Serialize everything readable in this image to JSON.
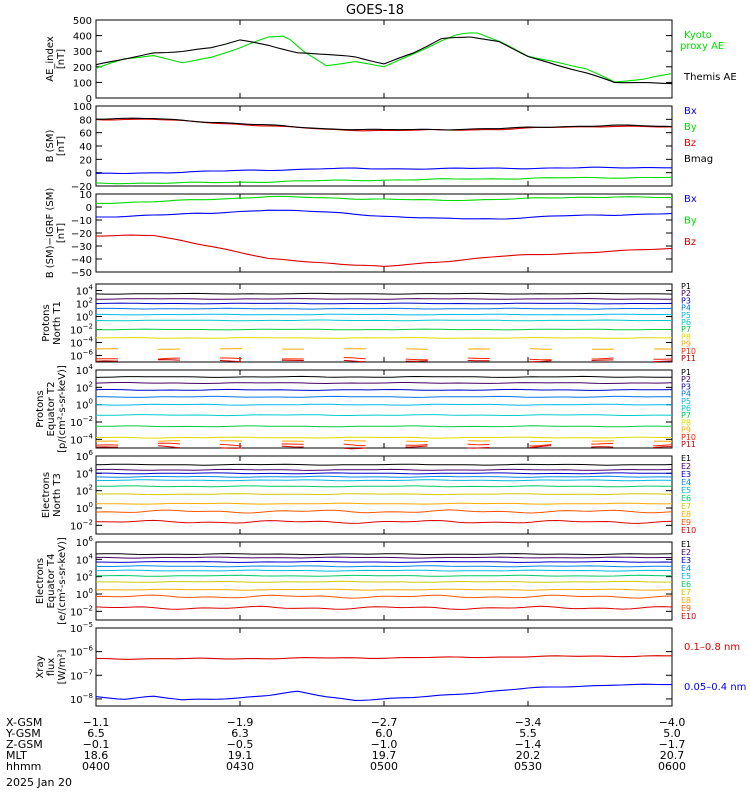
{
  "title": "GOES-18",
  "date": "2025 Jan 20",
  "ephemeris": {
    "rows": [
      {
        "label": "X-GSM",
        "values": [
          "-1.1",
          "-1.9",
          "-2.7",
          "-3.4",
          "-4.0"
        ]
      },
      {
        "label": "Y-GSM",
        "values": [
          "6.5",
          "6.3",
          "6.0",
          "5.5",
          "5.0"
        ]
      },
      {
        "label": "Z-GSM",
        "values": [
          "-0.1",
          "-0.5",
          "-1.0",
          "-1.4",
          "-1.7"
        ]
      },
      {
        "label": "MLT",
        "values": [
          "18.6",
          "19.1",
          "19.7",
          "20.2",
          "20.7"
        ]
      },
      {
        "label": "hhmm",
        "values": [
          "0400",
          "0430",
          "0500",
          "0530",
          "0600"
        ]
      }
    ]
  },
  "colors": {
    "black": "#000000",
    "green": "#00dd00",
    "blue": "#0000ff",
    "red": "#dd0000",
    "darkred": "#880000",
    "p_channels": [
      "#000000",
      "#440066",
      "#0000cc",
      "#0077ee",
      "#00bbee",
      "#00cccc",
      "#00cc44",
      "#dddd00",
      "#ffaa00",
      "#ff2200",
      "#cc0000"
    ],
    "e_channels": [
      "#000000",
      "#440066",
      "#0000cc",
      "#0088ee",
      "#00bbdd",
      "#00cc66",
      "#cccc00",
      "#ffaa00",
      "#ff5500",
      "#dd0000"
    ]
  },
  "chart_data": [
    {
      "type": "line",
      "ylabel": "AE_index [nT]",
      "ylim": [
        0,
        500
      ],
      "yticks": [
        "0",
        "100",
        "200",
        "300",
        "400",
        "500"
      ],
      "x": [
        "0400",
        "0430",
        "0500",
        "0530",
        "0600"
      ],
      "series": [
        {
          "name": "Kyoto proxy AE",
          "color": "#00dd00",
          "x": [
            0,
            0.05,
            0.1,
            0.15,
            0.2,
            0.25,
            0.3,
            0.33,
            0.36,
            0.4,
            0.45,
            0.5,
            0.55,
            0.6,
            0.63,
            0.66,
            0.7,
            0.75,
            0.8,
            0.85,
            0.9,
            0.95,
            1.0
          ],
          "values": [
            190,
            250,
            270,
            230,
            260,
            320,
            390,
            400,
            300,
            210,
            230,
            200,
            280,
            370,
            410,
            420,
            360,
            270,
            230,
            190,
            100,
            120,
            160
          ]
        },
        {
          "name": "Themis AE",
          "color": "#000000",
          "x": [
            0,
            0.05,
            0.1,
            0.15,
            0.2,
            0.25,
            0.3,
            0.35,
            0.4,
            0.45,
            0.5,
            0.55,
            0.6,
            0.65,
            0.7,
            0.75,
            0.8,
            0.85,
            0.9,
            0.95,
            1.0
          ],
          "values": [
            210,
            250,
            290,
            300,
            320,
            370,
            340,
            290,
            280,
            260,
            220,
            290,
            380,
            390,
            360,
            270,
            210,
            160,
            100,
            100,
            95
          ]
        }
      ]
    },
    {
      "type": "line",
      "ylabel": "B (SM) [nT]",
      "ylim": [
        -20,
        100
      ],
      "yticks": [
        "−20",
        "0",
        "20",
        "40",
        "60",
        "80",
        "100"
      ],
      "series": [
        {
          "name": "Bx",
          "color": "#0000ff",
          "x": [
            0,
            0.2,
            0.4,
            0.6,
            0.8,
            1.0
          ],
          "values": [
            -2,
            2,
            6,
            6,
            7,
            8
          ]
        },
        {
          "name": "By",
          "color": "#00dd00",
          "x": [
            0,
            0.2,
            0.4,
            0.6,
            0.8,
            1.0
          ],
          "values": [
            -16,
            -15,
            -12,
            -10,
            -8,
            -7
          ]
        },
        {
          "name": "Bz",
          "color": "#dd0000",
          "x": [
            0,
            0.1,
            0.2,
            0.3,
            0.4,
            0.5,
            0.6,
            0.7,
            0.8,
            0.9,
            1.0
          ],
          "values": [
            80,
            80,
            75,
            70,
            65,
            63,
            64,
            65,
            68,
            70,
            68
          ]
        },
        {
          "name": "Bmag",
          "color": "#000000",
          "x": [
            0,
            0.1,
            0.2,
            0.3,
            0.4,
            0.5,
            0.6,
            0.7,
            0.8,
            0.9,
            1.0
          ],
          "values": [
            81,
            81,
            76,
            71,
            66,
            64,
            65,
            66,
            69,
            71,
            69
          ]
        }
      ]
    },
    {
      "type": "line",
      "ylabel": "B (SM)−IGRF (SM) [nT]",
      "ylim": [
        -50,
        10
      ],
      "yticks": [
        "−50",
        "−40",
        "−30",
        "−20",
        "−10",
        "0",
        "10"
      ],
      "series": [
        {
          "name": "Bx",
          "color": "#0000ff",
          "x": [
            0,
            0.1,
            0.2,
            0.3,
            0.4,
            0.5,
            0.6,
            0.7,
            0.8,
            0.9,
            1.0
          ],
          "values": [
            -8,
            -6,
            -5,
            -2,
            -4,
            -7,
            -9,
            -9,
            -7,
            -6,
            -5
          ]
        },
        {
          "name": "By",
          "color": "#00dd00",
          "x": [
            0,
            0.1,
            0.2,
            0.3,
            0.4,
            0.5,
            0.6,
            0.7,
            0.8,
            0.9,
            1.0
          ],
          "values": [
            3,
            4,
            6,
            8,
            7,
            6,
            5,
            6,
            7,
            8,
            7
          ]
        },
        {
          "name": "Bz",
          "color": "#dd0000",
          "x": [
            0,
            0.1,
            0.2,
            0.3,
            0.4,
            0.5,
            0.6,
            0.7,
            0.8,
            0.9,
            1.0
          ],
          "values": [
            -22,
            -22,
            -30,
            -40,
            -43,
            -46,
            -42,
            -38,
            -36,
            -34,
            -32
          ]
        }
      ]
    },
    {
      "type": "line",
      "ylabel": "Protons North T1",
      "ylim": [
        -7,
        5
      ],
      "ylog": true,
      "ytick_exps": [
        -6,
        -4,
        -2,
        0,
        2,
        4
      ],
      "channels": [
        "P1",
        "P2",
        "P3",
        "P4",
        "P5",
        "P6",
        "P7",
        "P8",
        "P9",
        "P10",
        "P11"
      ],
      "levels": [
        3.5,
        2.7,
        2.0,
        1.2,
        0.3,
        -0.6,
        -2.0,
        -3.3,
        -5.0,
        -6.5,
        -6.8
      ]
    },
    {
      "type": "line",
      "ylabel": "Protons Equator T2 [p/(cm²-s-sr-keV)]",
      "ylim": [
        -5,
        4
      ],
      "ylog": true,
      "ytick_exps": [
        -4,
        -2,
        0,
        2,
        4
      ],
      "channels": [
        "P1",
        "P2",
        "P3",
        "P4",
        "P5",
        "P6",
        "P7",
        "P8",
        "P9",
        "P10",
        "P11"
      ],
      "levels": [
        3.2,
        2.5,
        1.7,
        0.9,
        0.0,
        -1.2,
        -2.5,
        -3.8,
        -4.2,
        -4.6,
        -4.9
      ]
    },
    {
      "type": "line",
      "ylabel": "Electrons North T3",
      "ylim": [
        -3,
        6
      ],
      "ylog": true,
      "ytick_exps": [
        -2,
        0,
        2,
        4,
        6
      ],
      "channels": [
        "E1",
        "E2",
        "E3",
        "E4",
        "E5",
        "E6",
        "E7",
        "E8",
        "E9",
        "E10"
      ],
      "levels": [
        5.0,
        4.4,
        4.0,
        3.6,
        3.2,
        2.5,
        1.6,
        0.5,
        -0.4,
        -1.6
      ]
    },
    {
      "type": "line",
      "ylabel": "Electrons Equator T4 [e/(cm²-s-sr-keV)]",
      "ylim": [
        -3,
        6
      ],
      "ylog": true,
      "ytick_exps": [
        -2,
        0,
        2,
        4,
        6
      ],
      "channels": [
        "E1",
        "E2",
        "E3",
        "E4",
        "E5",
        "E6",
        "E7",
        "E8",
        "E9",
        "E10"
      ],
      "levels": [
        4.6,
        4.2,
        3.7,
        3.2,
        2.7,
        2.1,
        1.4,
        0.5,
        -0.3,
        -1.6
      ]
    },
    {
      "type": "line",
      "ylabel": "Xray flux [W/m²]",
      "ylim": [
        -8.3,
        -5
      ],
      "ylog": true,
      "ytick_exps": [
        -8,
        -7,
        -6,
        -5
      ],
      "series": [
        {
          "name": "0.1–0.8 nm",
          "color": "#dd0000",
          "x": [
            0,
            0.2,
            0.4,
            0.6,
            0.8,
            1.0
          ],
          "values": [
            -6.3,
            -6.3,
            -6.27,
            -6.25,
            -6.2,
            -6.18
          ]
        },
        {
          "name": "0.05–0.4 nm",
          "color": "#0000ff",
          "x": [
            0,
            0.05,
            0.1,
            0.15,
            0.2,
            0.25,
            0.3,
            0.35,
            0.4,
            0.45,
            0.5,
            0.55,
            0.6,
            0.65,
            0.7,
            0.75,
            0.8,
            0.85,
            0.9,
            0.95,
            1.0
          ],
          "values": [
            -7.9,
            -8.0,
            -7.9,
            -8.05,
            -8.0,
            -7.95,
            -7.85,
            -7.7,
            -7.9,
            -8.05,
            -8.0,
            -7.95,
            -7.85,
            -7.75,
            -7.65,
            -7.55,
            -7.5,
            -7.45,
            -7.4,
            -7.4,
            -7.4
          ]
        }
      ]
    }
  ]
}
